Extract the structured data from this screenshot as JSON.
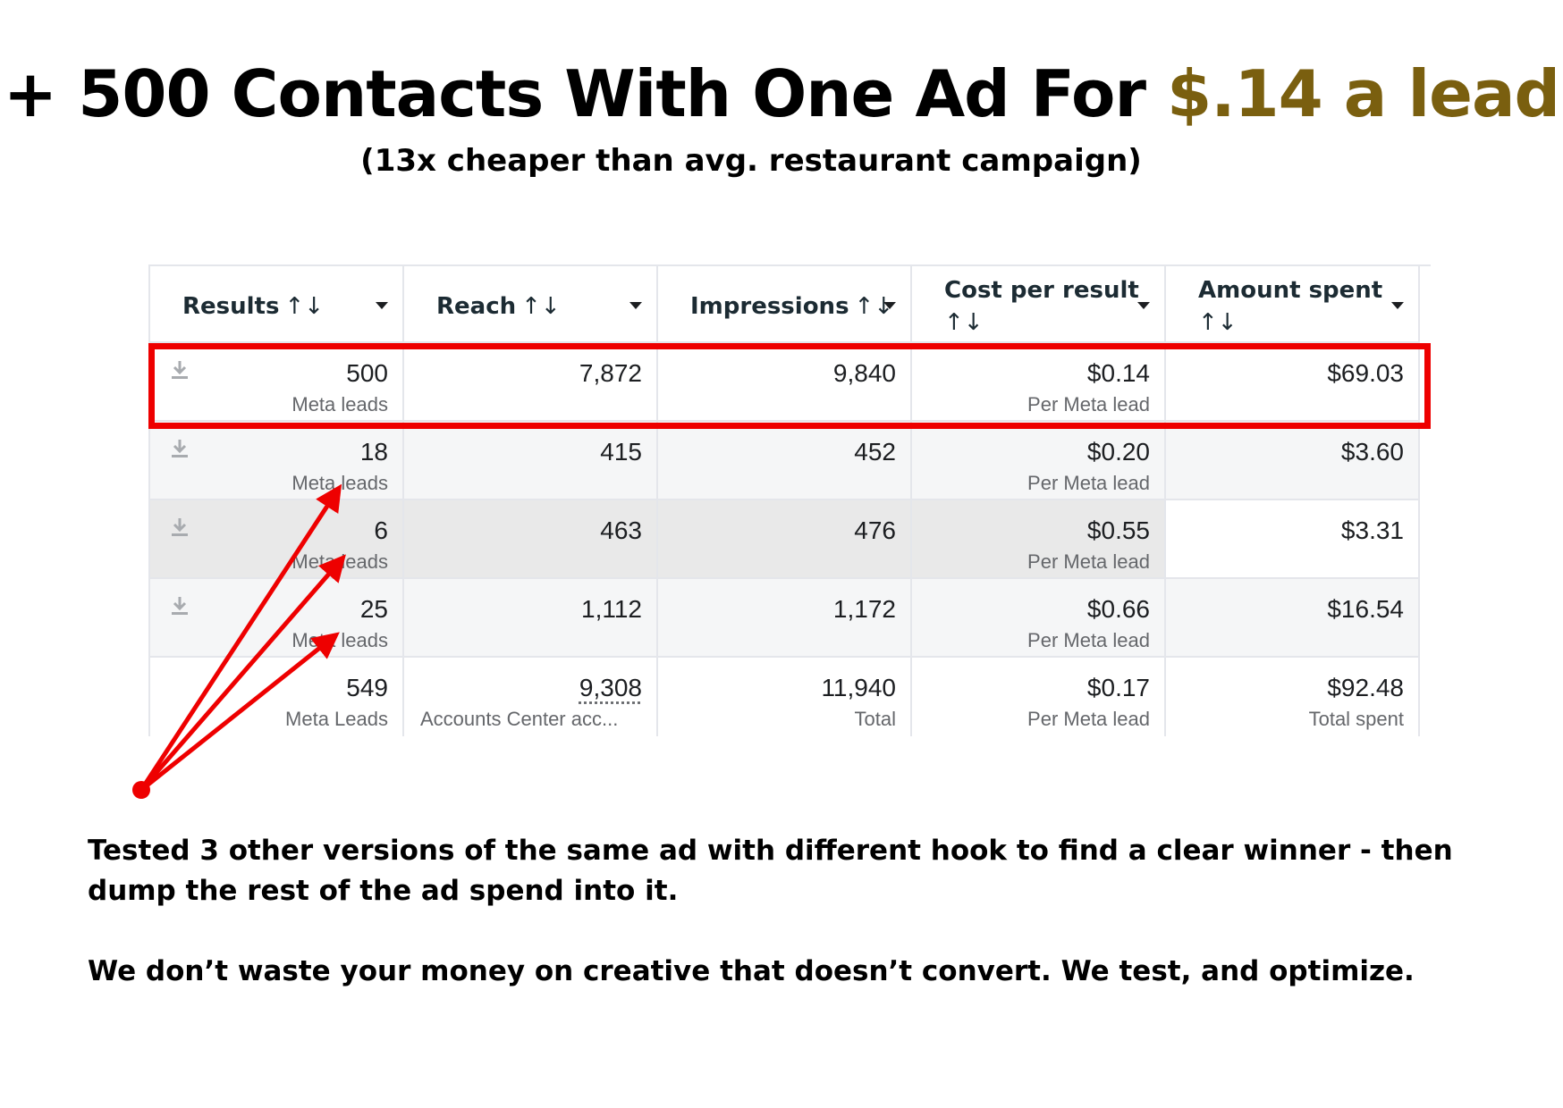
{
  "headline": {
    "prefix": "+ 500 Contacts With One Ad For ",
    "accent": "$.14 a lead",
    "accent_color": "#7a5f0f"
  },
  "subhead": "(13x cheaper than avg. restaurant campaign)",
  "table": {
    "columns": [
      {
        "label": "Results",
        "sort": "↑↓"
      },
      {
        "label": "Reach",
        "sort": "↑↓"
      },
      {
        "label": "Impressions",
        "sort": "↑↓"
      },
      {
        "label": "Cost per result",
        "sort": "↑↓"
      },
      {
        "label": "Amount spent",
        "sort": "↑↓"
      }
    ],
    "rows": [
      {
        "results": "500",
        "results_sub": "Meta leads",
        "reach": "7,872",
        "impressions": "9,840",
        "cost": "$0.14",
        "cost_sub": "Per Meta lead",
        "spent": "$69.03",
        "highlighted": true
      },
      {
        "results": "18",
        "results_sub": "Meta leads",
        "reach": "415",
        "impressions": "452",
        "cost": "$0.20",
        "cost_sub": "Per Meta lead",
        "spent": "$3.60"
      },
      {
        "results": "6",
        "results_sub": "Meta leads",
        "reach": "463",
        "impressions": "476",
        "cost": "$0.55",
        "cost_sub": "Per Meta lead",
        "spent": "$3.31"
      },
      {
        "results": "25",
        "results_sub": "Meta leads",
        "reach": "1,112",
        "impressions": "1,172",
        "cost": "$0.66",
        "cost_sub": "Per Meta lead",
        "spent": "$16.54"
      }
    ],
    "totals": {
      "results": "549",
      "results_sub": "Meta Leads",
      "reach": "9,308",
      "reach_sub": "Accounts Center acc...",
      "impressions": "11,940",
      "impressions_sub": "Total",
      "cost": "$0.17",
      "cost_sub": "Per Meta lead",
      "spent": "$92.48",
      "spent_sub": "Total spent"
    }
  },
  "icons": {
    "row_action": "download-icon",
    "column_menu": "caret-down-icon"
  },
  "annotation_color": "#ee0000",
  "body": {
    "paragraph1": "Tested 3 other versions of the same ad with different hook to find a clear winner - then dump the rest of the ad spend into it.",
    "paragraph2": "We don’t waste your money on creative that doesn’t convert. We test, and optimize."
  }
}
